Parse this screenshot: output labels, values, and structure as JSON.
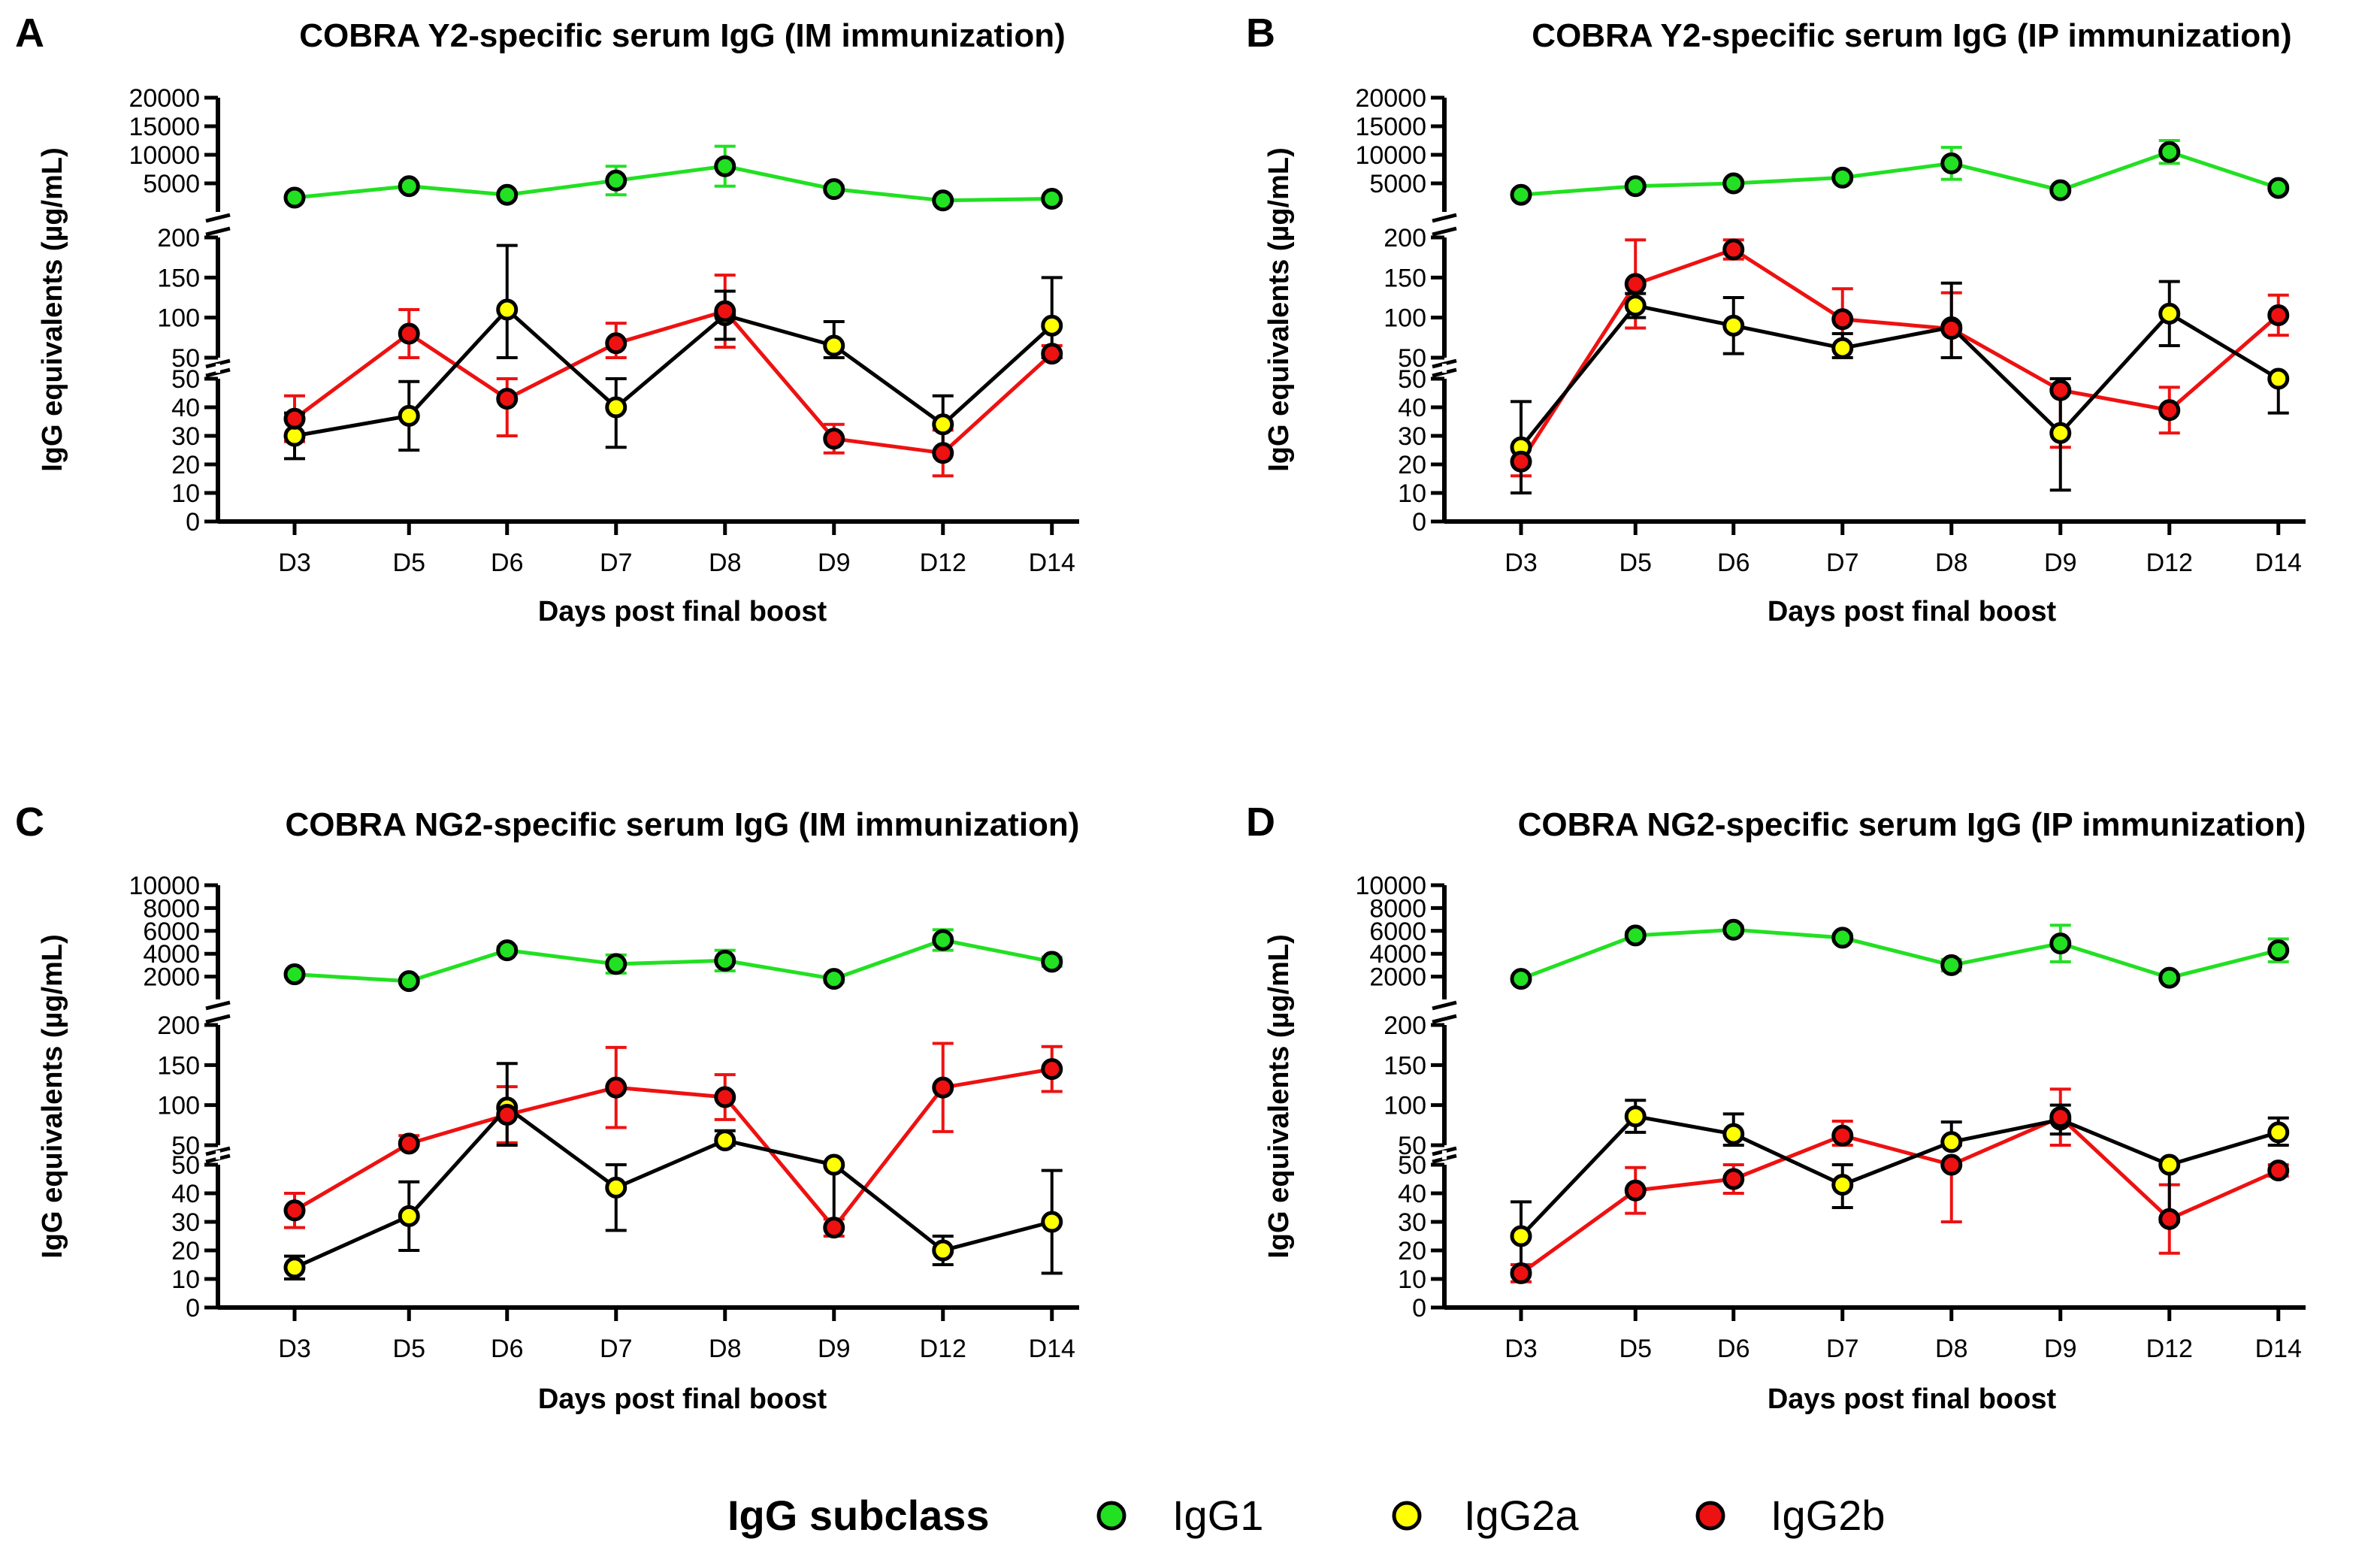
{
  "colors": {
    "IgG1": "#22e022",
    "IgG2a": "#ffff00",
    "IgG2b": "#ee1111",
    "ink": "#000000"
  },
  "axis_common": {
    "categories": [
      "D3",
      "D5",
      "D6",
      "D7",
      "D8",
      "D9",
      "D12",
      "D14"
    ],
    "xlabel": "Days post final boost",
    "ylabel": "IgG equivalents (µg/mL)"
  },
  "legend": {
    "title": "IgG subclass",
    "items": [
      {
        "key": "IgG1",
        "label": "IgG1"
      },
      {
        "key": "IgG2a",
        "label": "IgG2a"
      },
      {
        "key": "IgG2b",
        "label": "IgG2b"
      }
    ]
  },
  "chart_data": [
    {
      "panel": "A",
      "title": "COBRA Y2-specific serum IgG (IM immunization)",
      "type": "line",
      "y_segments": [
        {
          "range": [
            0,
            50
          ],
          "ticks": [
            0,
            10,
            20,
            30,
            40,
            50
          ]
        },
        {
          "range": [
            50,
            200
          ],
          "ticks": [
            50,
            100,
            150,
            200
          ]
        },
        {
          "range": [
            0,
            20000
          ],
          "ticks": [
            5000,
            10000,
            15000,
            20000
          ]
        }
      ],
      "series": [
        {
          "name": "IgG1",
          "values": [
            2500,
            4500,
            3000,
            5500,
            8000,
            4000,
            2000,
            2300
          ],
          "err": [
            300,
            500,
            400,
            2500,
            3500,
            500,
            300,
            300
          ]
        },
        {
          "name": "IgG2a",
          "values": [
            30,
            37,
            110,
            40,
            103,
            65,
            34,
            90
          ],
          "err": [
            8,
            12,
            80,
            14,
            30,
            30,
            10,
            60
          ]
        },
        {
          "name": "IgG2b",
          "values": [
            36,
            80,
            43,
            68,
            108,
            29,
            24,
            55
          ],
          "err": [
            8,
            30,
            13,
            25,
            45,
            5,
            8,
            10
          ]
        }
      ]
    },
    {
      "panel": "B",
      "title": "COBRA Y2-specific serum IgG (IP immunization)",
      "type": "line",
      "y_segments": [
        {
          "range": [
            0,
            50
          ],
          "ticks": [
            0,
            10,
            20,
            30,
            40,
            50
          ]
        },
        {
          "range": [
            50,
            200
          ],
          "ticks": [
            50,
            100,
            150,
            200
          ]
        },
        {
          "range": [
            0,
            20000
          ],
          "ticks": [
            5000,
            10000,
            15000,
            20000
          ]
        }
      ],
      "series": [
        {
          "name": "IgG1",
          "values": [
            3000,
            4500,
            5000,
            6000,
            8500,
            3800,
            10500,
            4200
          ],
          "err": [
            300,
            500,
            500,
            500,
            2800,
            400,
            2000,
            400
          ]
        },
        {
          "name": "IgG2a",
          "values": [
            26,
            115,
            90,
            62,
            88,
            31,
            105,
            50
          ],
          "err": [
            16,
            15,
            35,
            18,
            55,
            20,
            40,
            12
          ]
        },
        {
          "name": "IgG2b",
          "values": [
            21,
            142,
            185,
            98,
            86,
            46,
            39,
            103
          ],
          "err": [
            5,
            55,
            12,
            38,
            45,
            20,
            8,
            25
          ]
        }
      ]
    },
    {
      "panel": "C",
      "title": "COBRA NG2-specific serum IgG (IM immunization)",
      "type": "line",
      "y_segments": [
        {
          "range": [
            0,
            50
          ],
          "ticks": [
            0,
            10,
            20,
            30,
            40,
            50
          ]
        },
        {
          "range": [
            50,
            200
          ],
          "ticks": [
            50,
            100,
            150,
            200
          ]
        },
        {
          "range": [
            0,
            10000
          ],
          "ticks": [
            2000,
            4000,
            6000,
            8000,
            10000
          ]
        }
      ],
      "series": [
        {
          "name": "IgG1",
          "values": [
            2200,
            1600,
            4300,
            3100,
            3400,
            1800,
            5200,
            3300
          ],
          "err": [
            200,
            200,
            300,
            800,
            900,
            300,
            900,
            400
          ]
        },
        {
          "name": "IgG2a",
          "values": [
            14,
            32,
            97,
            42,
            56,
            50,
            20,
            30
          ],
          "err": [
            4,
            12,
            55,
            15,
            12,
            22,
            5,
            18
          ]
        },
        {
          "name": "IgG2b",
          "values": [
            34,
            52,
            88,
            122,
            110,
            28,
            122,
            145
          ],
          "err": [
            6,
            10,
            35,
            50,
            28,
            3,
            55,
            28
          ]
        }
      ]
    },
    {
      "panel": "D",
      "title": "COBRA NG2-specific serum IgG (IP immunization)",
      "type": "line",
      "y_segments": [
        {
          "range": [
            0,
            50
          ],
          "ticks": [
            0,
            10,
            20,
            30,
            40,
            50
          ]
        },
        {
          "range": [
            50,
            200
          ],
          "ticks": [
            50,
            100,
            150,
            200
          ]
        },
        {
          "range": [
            0,
            10000
          ],
          "ticks": [
            2000,
            4000,
            6000,
            8000,
            10000
          ]
        }
      ],
      "series": [
        {
          "name": "IgG1",
          "values": [
            1800,
            5600,
            6100,
            5400,
            3000,
            4900,
            1900,
            4300
          ],
          "err": [
            200,
            300,
            300,
            300,
            500,
            1600,
            200,
            1000
          ]
        },
        {
          "name": "IgG2a",
          "values": [
            25,
            86,
            64,
            43,
            54,
            82,
            50,
            66
          ],
          "err": [
            12,
            20,
            25,
            8,
            25,
            18,
            20,
            18
          ]
        },
        {
          "name": "IgG2b",
          "values": [
            12,
            41,
            45,
            62,
            50,
            85,
            31,
            48
          ],
          "err": [
            3,
            8,
            5,
            18,
            20,
            35,
            12,
            2
          ]
        }
      ]
    }
  ]
}
